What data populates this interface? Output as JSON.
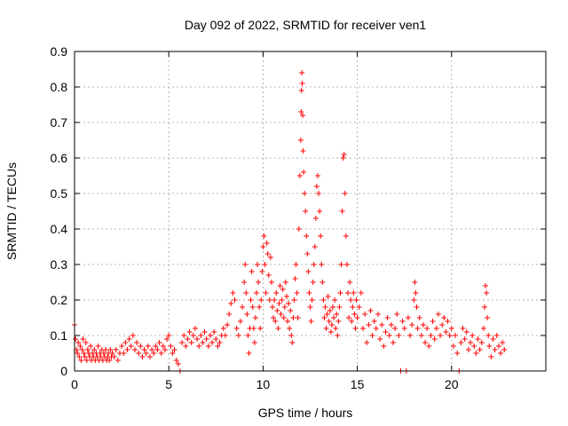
{
  "chart_data": {
    "type": "scatter",
    "title": "Day 092 of 2022, SRMTID for receiver ven1",
    "xlabel": "GPS time / hours",
    "ylabel": "SRMTID / TECUs",
    "xlim": [
      0,
      25
    ],
    "ylim": [
      0,
      0.9
    ],
    "grid": true,
    "marker": "+",
    "color": "#ff0000",
    "x_ticks": [
      "0",
      "5",
      "10",
      "15",
      "20"
    ],
    "x_tick_values": [
      0,
      5,
      10,
      15,
      20
    ],
    "y_ticks": [
      "0",
      "0.1",
      "0.2",
      "0.3",
      "0.4",
      "0.5",
      "0.6",
      "0.7",
      "0.8",
      "0.9"
    ],
    "y_tick_values": [
      0,
      0.1,
      0.2,
      0.3,
      0.4,
      0.5,
      0.6,
      0.7,
      0.8,
      0.9
    ],
    "series": [
      {
        "name": "ven1",
        "points": [
          [
            0.0,
            0.13
          ],
          [
            0.05,
            0.09
          ],
          [
            0.1,
            0.06
          ],
          [
            0.15,
            0.05
          ],
          [
            0.2,
            0.08
          ],
          [
            0.25,
            0.04
          ],
          [
            0.3,
            0.07
          ],
          [
            0.35,
            0.03
          ],
          [
            0.4,
            0.06
          ],
          [
            0.45,
            0.09
          ],
          [
            0.5,
            0.05
          ],
          [
            0.55,
            0.04
          ],
          [
            0.6,
            0.08
          ],
          [
            0.65,
            0.03
          ],
          [
            0.7,
            0.06
          ],
          [
            0.75,
            0.05
          ],
          [
            0.8,
            0.04
          ],
          [
            0.85,
            0.07
          ],
          [
            0.9,
            0.03
          ],
          [
            0.95,
            0.05
          ],
          [
            1.0,
            0.04
          ],
          [
            1.05,
            0.06
          ],
          [
            1.1,
            0.03
          ],
          [
            1.15,
            0.05
          ],
          [
            1.2,
            0.04
          ],
          [
            1.25,
            0.07
          ],
          [
            1.3,
            0.03
          ],
          [
            1.35,
            0.05
          ],
          [
            1.4,
            0.04
          ],
          [
            1.45,
            0.06
          ],
          [
            1.5,
            0.03
          ],
          [
            1.55,
            0.05
          ],
          [
            1.6,
            0.04
          ],
          [
            1.65,
            0.06
          ],
          [
            1.7,
            0.03
          ],
          [
            1.75,
            0.04
          ],
          [
            1.8,
            0.05
          ],
          [
            1.85,
            0.03
          ],
          [
            1.9,
            0.06
          ],
          [
            1.95,
            0.04
          ],
          [
            2.0,
            0.05
          ],
          [
            2.1,
            0.04
          ],
          [
            2.2,
            0.06
          ],
          [
            2.3,
            0.03
          ],
          [
            2.4,
            0.05
          ],
          [
            2.5,
            0.07
          ],
          [
            2.6,
            0.05
          ],
          [
            2.7,
            0.08
          ],
          [
            2.8,
            0.06
          ],
          [
            2.9,
            0.09
          ],
          [
            3.0,
            0.07
          ],
          [
            3.1,
            0.1
          ],
          [
            3.2,
            0.06
          ],
          [
            3.3,
            0.08
          ],
          [
            3.4,
            0.05
          ],
          [
            3.5,
            0.07
          ],
          [
            3.6,
            0.04
          ],
          [
            3.7,
            0.06
          ],
          [
            3.8,
            0.05
          ],
          [
            3.9,
            0.07
          ],
          [
            4.0,
            0.04
          ],
          [
            4.1,
            0.06
          ],
          [
            4.2,
            0.05
          ],
          [
            4.3,
            0.07
          ],
          [
            4.4,
            0.06
          ],
          [
            4.5,
            0.08
          ],
          [
            4.6,
            0.05
          ],
          [
            4.7,
            0.07
          ],
          [
            4.8,
            0.06
          ],
          [
            4.9,
            0.09
          ],
          [
            5.0,
            0.1
          ],
          [
            5.1,
            0.07
          ],
          [
            5.2,
            0.05
          ],
          [
            5.3,
            0.06
          ],
          [
            5.4,
            0.03
          ],
          [
            5.5,
            0.02
          ],
          [
            5.6,
            0.0
          ],
          [
            5.7,
            0.08
          ],
          [
            5.8,
            0.1
          ],
          [
            5.9,
            0.07
          ],
          [
            6.0,
            0.09
          ],
          [
            6.1,
            0.11
          ],
          [
            6.2,
            0.08
          ],
          [
            6.3,
            0.1
          ],
          [
            6.4,
            0.12
          ],
          [
            6.5,
            0.09
          ],
          [
            6.6,
            0.07
          ],
          [
            6.7,
            0.1
          ],
          [
            6.8,
            0.08
          ],
          [
            6.9,
            0.11
          ],
          [
            7.0,
            0.09
          ],
          [
            7.1,
            0.07
          ],
          [
            7.2,
            0.1
          ],
          [
            7.3,
            0.08
          ],
          [
            7.4,
            0.11
          ],
          [
            7.5,
            0.09
          ],
          [
            7.6,
            0.07
          ],
          [
            7.7,
            0.08
          ],
          [
            7.8,
            0.1
          ],
          [
            7.9,
            0.12
          ],
          [
            8.0,
            0.1
          ],
          [
            8.1,
            0.13
          ],
          [
            8.2,
            0.16
          ],
          [
            8.3,
            0.19
          ],
          [
            8.4,
            0.22
          ],
          [
            8.5,
            0.2
          ],
          [
            8.6,
            0.12
          ],
          [
            8.7,
            0.1
          ],
          [
            8.8,
            0.14
          ],
          [
            8.9,
            0.18
          ],
          [
            9.0,
            0.25
          ],
          [
            9.05,
            0.3
          ],
          [
            9.1,
            0.22
          ],
          [
            9.15,
            0.16
          ],
          [
            9.2,
            0.1
          ],
          [
            9.25,
            0.05
          ],
          [
            9.3,
            0.12
          ],
          [
            9.35,
            0.2
          ],
          [
            9.4,
            0.28
          ],
          [
            9.45,
            0.18
          ],
          [
            9.5,
            0.12
          ],
          [
            9.55,
            0.08
          ],
          [
            9.6,
            0.15
          ],
          [
            9.65,
            0.22
          ],
          [
            9.7,
            0.3
          ],
          [
            9.75,
            0.25
          ],
          [
            9.8,
            0.18
          ],
          [
            9.85,
            0.12
          ],
          [
            9.9,
            0.2
          ],
          [
            9.95,
            0.28
          ],
          [
            10.0,
            0.35
          ],
          [
            10.05,
            0.38
          ],
          [
            10.1,
            0.3
          ],
          [
            10.15,
            0.22
          ],
          [
            10.2,
            0.36
          ],
          [
            10.25,
            0.33
          ],
          [
            10.3,
            0.27
          ],
          [
            10.35,
            0.2
          ],
          [
            10.4,
            0.32
          ],
          [
            10.45,
            0.25
          ],
          [
            10.5,
            0.18
          ],
          [
            10.55,
            0.15
          ],
          [
            10.6,
            0.2
          ],
          [
            10.65,
            0.14
          ],
          [
            10.7,
            0.22
          ],
          [
            10.75,
            0.17
          ],
          [
            10.8,
            0.12
          ],
          [
            10.85,
            0.19
          ],
          [
            10.9,
            0.24
          ],
          [
            10.95,
            0.16
          ],
          [
            11.0,
            0.2
          ],
          [
            11.05,
            0.23
          ],
          [
            11.1,
            0.15
          ],
          [
            11.15,
            0.18
          ],
          [
            11.2,
            0.25
          ],
          [
            11.25,
            0.21
          ],
          [
            11.3,
            0.14
          ],
          [
            11.35,
            0.19
          ],
          [
            11.4,
            0.12
          ],
          [
            11.45,
            0.17
          ],
          [
            11.5,
            0.1
          ],
          [
            11.55,
            0.08
          ],
          [
            11.6,
            0.15
          ],
          [
            11.65,
            0.2
          ],
          [
            11.7,
            0.26
          ],
          [
            11.75,
            0.3
          ],
          [
            11.8,
            0.22
          ],
          [
            11.85,
            0.15
          ],
          [
            11.9,
            0.4
          ],
          [
            11.95,
            0.55
          ],
          [
            12.0,
            0.65
          ],
          [
            12.02,
            0.73
          ],
          [
            12.04,
            0.79
          ],
          [
            12.06,
            0.84
          ],
          [
            12.08,
            0.81
          ],
          [
            12.1,
            0.72
          ],
          [
            12.12,
            0.62
          ],
          [
            12.15,
            0.56
          ],
          [
            12.2,
            0.5
          ],
          [
            12.25,
            0.45
          ],
          [
            12.3,
            0.38
          ],
          [
            12.35,
            0.33
          ],
          [
            12.4,
            0.28
          ],
          [
            12.45,
            0.22
          ],
          [
            12.5,
            0.18
          ],
          [
            12.55,
            0.14
          ],
          [
            12.6,
            0.2
          ],
          [
            12.65,
            0.25
          ],
          [
            12.7,
            0.3
          ],
          [
            12.75,
            0.35
          ],
          [
            12.8,
            0.43
          ],
          [
            12.85,
            0.52
          ],
          [
            12.9,
            0.55
          ],
          [
            12.95,
            0.5
          ],
          [
            13.0,
            0.45
          ],
          [
            13.05,
            0.38
          ],
          [
            13.1,
            0.3
          ],
          [
            13.15,
            0.25
          ],
          [
            13.2,
            0.2
          ],
          [
            13.25,
            0.15
          ],
          [
            13.3,
            0.18
          ],
          [
            13.35,
            0.12
          ],
          [
            13.4,
            0.16
          ],
          [
            13.45,
            0.21
          ],
          [
            13.5,
            0.14
          ],
          [
            13.55,
            0.17
          ],
          [
            13.6,
            0.11
          ],
          [
            13.65,
            0.13
          ],
          [
            13.7,
            0.18
          ],
          [
            13.75,
            0.15
          ],
          [
            13.8,
            0.2
          ],
          [
            13.85,
            0.12
          ],
          [
            13.9,
            0.16
          ],
          [
            13.95,
            0.1
          ],
          [
            14.0,
            0.14
          ],
          [
            14.05,
            0.18
          ],
          [
            14.1,
            0.22
          ],
          [
            14.15,
            0.3
          ],
          [
            14.2,
            0.45
          ],
          [
            14.25,
            0.6
          ],
          [
            14.3,
            0.61
          ],
          [
            14.35,
            0.5
          ],
          [
            14.4,
            0.38
          ],
          [
            14.45,
            0.3
          ],
          [
            14.5,
            0.22
          ],
          [
            14.55,
            0.15
          ],
          [
            14.6,
            0.25
          ],
          [
            14.65,
            0.2
          ],
          [
            14.7,
            0.14
          ],
          [
            14.75,
            0.18
          ],
          [
            14.8,
            0.22
          ],
          [
            14.85,
            0.16
          ],
          [
            14.9,
            0.12
          ],
          [
            14.95,
            0.2
          ],
          [
            15.0,
            0.15
          ],
          [
            15.1,
            0.18
          ],
          [
            15.2,
            0.22
          ],
          [
            15.3,
            0.12
          ],
          [
            15.4,
            0.16
          ],
          [
            15.5,
            0.08
          ],
          [
            15.6,
            0.13
          ],
          [
            15.7,
            0.17
          ],
          [
            15.8,
            0.1
          ],
          [
            15.9,
            0.14
          ],
          [
            16.0,
            0.12
          ],
          [
            16.1,
            0.16
          ],
          [
            16.2,
            0.09
          ],
          [
            16.3,
            0.13
          ],
          [
            16.4,
            0.07
          ],
          [
            16.5,
            0.11
          ],
          [
            16.6,
            0.15
          ],
          [
            16.7,
            0.1
          ],
          [
            16.8,
            0.13
          ],
          [
            16.9,
            0.08
          ],
          [
            17.0,
            0.12
          ],
          [
            17.1,
            0.16
          ],
          [
            17.2,
            0.1
          ],
          [
            17.3,
            0.0
          ],
          [
            17.4,
            0.14
          ],
          [
            17.5,
            0.12
          ],
          [
            17.6,
            0.0
          ],
          [
            17.7,
            0.15
          ],
          [
            17.8,
            0.1
          ],
          [
            17.9,
            0.13
          ],
          [
            18.0,
            0.2
          ],
          [
            18.05,
            0.25
          ],
          [
            18.1,
            0.22
          ],
          [
            18.15,
            0.18
          ],
          [
            18.2,
            0.12
          ],
          [
            18.3,
            0.15
          ],
          [
            18.4,
            0.1
          ],
          [
            18.5,
            0.13
          ],
          [
            18.6,
            0.08
          ],
          [
            18.7,
            0.12
          ],
          [
            18.8,
            0.07
          ],
          [
            18.9,
            0.1
          ],
          [
            19.0,
            0.14
          ],
          [
            19.1,
            0.09
          ],
          [
            19.2,
            0.12
          ],
          [
            19.3,
            0.16
          ],
          [
            19.4,
            0.1
          ],
          [
            19.5,
            0.13
          ],
          [
            19.6,
            0.15
          ],
          [
            19.7,
            0.11
          ],
          [
            19.8,
            0.14
          ],
          [
            19.9,
            0.1
          ],
          [
            20.0,
            0.12
          ],
          [
            20.1,
            0.07
          ],
          [
            20.2,
            0.1
          ],
          [
            20.3,
            0.05
          ],
          [
            20.4,
            0.0
          ],
          [
            20.5,
            0.08
          ],
          [
            20.6,
            0.12
          ],
          [
            20.7,
            0.09
          ],
          [
            20.8,
            0.11
          ],
          [
            20.9,
            0.06
          ],
          [
            21.0,
            0.08
          ],
          [
            21.1,
            0.1
          ],
          [
            21.2,
            0.07
          ],
          [
            21.3,
            0.05
          ],
          [
            21.4,
            0.09
          ],
          [
            21.5,
            0.06
          ],
          [
            21.6,
            0.08
          ],
          [
            21.7,
            0.12
          ],
          [
            21.75,
            0.18
          ],
          [
            21.8,
            0.24
          ],
          [
            21.85,
            0.22
          ],
          [
            21.9,
            0.15
          ],
          [
            21.95,
            0.1
          ],
          [
            22.0,
            0.07
          ],
          [
            22.1,
            0.04
          ],
          [
            22.2,
            0.09
          ],
          [
            22.3,
            0.06
          ],
          [
            22.4,
            0.1
          ],
          [
            22.5,
            0.07
          ],
          [
            22.6,
            0.05
          ],
          [
            22.7,
            0.08
          ],
          [
            22.8,
            0.06
          ]
        ]
      }
    ]
  }
}
